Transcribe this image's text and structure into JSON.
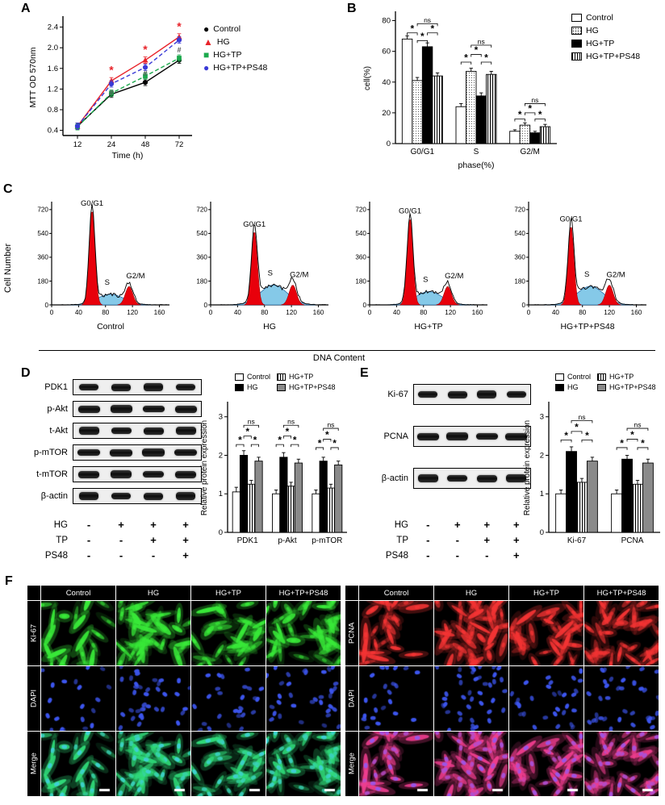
{
  "figure": {
    "panel_labels": {
      "A": "A",
      "B": "B",
      "C": "C",
      "D": "D",
      "E": "E",
      "F": "F"
    }
  },
  "colors": {
    "control": "#000000",
    "hg": "#e8232a",
    "hgtp": "#1ca94d",
    "hgtpps48": "#3a3ad6",
    "flow_peak": "#e8000b",
    "flow_s_fill": "#85c9e8",
    "flow_s_stroke": "#2d6fa8",
    "gray_bar": "#8a8a8a"
  },
  "chart_data": [
    {
      "id": "mtt",
      "type": "line",
      "xlabel": "Time (h)",
      "ylabel": "MTT OD 570nm",
      "x_ticks": [
        "12",
        "24",
        "48",
        "72"
      ],
      "y_ticks": [
        "0.4",
        "0.8",
        "1.2",
        "1.6",
        "2.0",
        "2.4"
      ],
      "ylim": [
        0.3,
        2.55
      ],
      "series": [
        {
          "name": "Control",
          "color": "#000000",
          "marker": "circle",
          "dashed": false,
          "values": [
            0.48,
            1.1,
            1.33,
            1.76
          ]
        },
        {
          "name": "HG",
          "color": "#e8232a",
          "marker": "triangle",
          "dashed": false,
          "values": [
            0.48,
            1.36,
            1.76,
            2.21
          ]
        },
        {
          "name": "HG+TP",
          "color": "#1ca94d",
          "marker": "square",
          "dashed": true,
          "values": [
            0.47,
            1.12,
            1.45,
            1.8
          ]
        },
        {
          "name": "HG+TP+PS48",
          "color": "#3a3ad6",
          "marker": "circle",
          "dashed": true,
          "values": [
            0.48,
            1.3,
            1.62,
            2.15
          ]
        }
      ],
      "annotations": [
        {
          "text": "*",
          "color": "#e8232a",
          "xi": 1,
          "y": 1.56
        },
        {
          "text": "*",
          "color": "#e8232a",
          "xi": 2,
          "y": 1.96
        },
        {
          "text": "*",
          "color": "#e8232a",
          "xi": 3,
          "y": 2.4
        },
        {
          "text": "#",
          "color": "#555555",
          "xi": 1,
          "y": 1.14
        },
        {
          "text": "#",
          "color": "#555555",
          "xi": 2,
          "y": 1.52
        },
        {
          "text": "#",
          "color": "#555555",
          "xi": 3,
          "y": 1.97
        }
      ]
    },
    {
      "id": "cycle",
      "type": "bar",
      "xlabel": "phase(%)",
      "ylabel": "cell(%)",
      "categories": [
        "G0/G1",
        "S",
        "G2/M"
      ],
      "ylim": [
        0,
        85
      ],
      "y_ticks": [
        "0",
        "20",
        "40",
        "60",
        "80"
      ],
      "series": [
        {
          "name": "Control",
          "fill": "white",
          "values": [
            68,
            24,
            8
          ],
          "errors": [
            2,
            2,
            1
          ]
        },
        {
          "name": "HG",
          "fill": "dots",
          "values": [
            41,
            47,
            12
          ],
          "errors": [
            2,
            2,
            1.5
          ]
        },
        {
          "name": "HG+TP",
          "fill": "black",
          "values": [
            63,
            31,
            7
          ],
          "errors": [
            2.5,
            2,
            1
          ]
        },
        {
          "name": "HG+TP+PS48",
          "fill": "vstripe",
          "values": [
            44,
            45,
            11
          ],
          "errors": [
            2,
            2,
            1.5
          ]
        }
      ],
      "sig": [
        {
          "cat": 0,
          "from": 0,
          "to": 1,
          "y": 72,
          "text": "*"
        },
        {
          "cat": 0,
          "from": 1,
          "to": 2,
          "y": 67,
          "text": "*"
        },
        {
          "cat": 0,
          "from": 2,
          "to": 3,
          "y": 72,
          "text": "*"
        },
        {
          "cat": 0,
          "from": 1,
          "to": 3,
          "y": 78,
          "text": "ns"
        },
        {
          "cat": 1,
          "from": 0,
          "to": 1,
          "y": 53,
          "text": "*"
        },
        {
          "cat": 1,
          "from": 1,
          "to": 2,
          "y": 58,
          "text": "*"
        },
        {
          "cat": 1,
          "from": 2,
          "to": 3,
          "y": 53,
          "text": "*"
        },
        {
          "cat": 1,
          "from": 1,
          "to": 3,
          "y": 64,
          "text": "ns"
        },
        {
          "cat": 2,
          "from": 0,
          "to": 1,
          "y": 16,
          "text": "*"
        },
        {
          "cat": 2,
          "from": 1,
          "to": 2,
          "y": 20,
          "text": "*"
        },
        {
          "cat": 2,
          "from": 2,
          "to": 3,
          "y": 16,
          "text": "*"
        },
        {
          "cat": 2,
          "from": 1,
          "to": 3,
          "y": 26,
          "text": "ns"
        }
      ]
    },
    {
      "id": "flow",
      "type": "histogram-set",
      "xlabel": "DNA Content",
      "ylabel": "Cell Number",
      "x_ticks": [
        "0",
        "40",
        "80",
        "120",
        "160"
      ],
      "y_ticks": [
        "0",
        "180",
        "360",
        "540",
        "720"
      ],
      "xlim": [
        0,
        175
      ],
      "ylim": [
        0,
        780
      ],
      "peak_labels": {
        "g1": "G0/G1",
        "s": "S",
        "g2": "G2/M"
      },
      "subplots": [
        {
          "title": "Control",
          "g1_x": 60,
          "g1_h": 720,
          "s_h": 80,
          "g2_x": 115,
          "g2_h": 140
        },
        {
          "title": "HG",
          "g1_x": 65,
          "g1_h": 560,
          "s_h": 150,
          "g2_x": 122,
          "g2_h": 150
        },
        {
          "title": "HG+TP",
          "g1_x": 60,
          "g1_h": 660,
          "s_h": 100,
          "g2_x": 116,
          "g2_h": 140
        },
        {
          "title": "HG+TP+PS48",
          "g1_x": 63,
          "g1_h": 600,
          "s_h": 140,
          "g2_x": 120,
          "g2_h": 150
        }
      ]
    },
    {
      "id": "prot_d",
      "type": "bar",
      "xlabel": "",
      "ylabel": "Relative protein expression",
      "categories": [
        "PDK1",
        "p-Akt",
        "p-mTOR"
      ],
      "ylim": [
        0,
        3.35
      ],
      "y_ticks": [
        "0",
        "1",
        "2",
        "3"
      ],
      "series": [
        {
          "name": "Control",
          "fill": "white",
          "values": [
            1.05,
            1.0,
            1.0
          ],
          "errors": [
            0.12,
            0.1,
            0.1
          ]
        },
        {
          "name": "HG",
          "fill": "black",
          "values": [
            2.0,
            1.95,
            1.85
          ],
          "errors": [
            0.12,
            0.12,
            0.1
          ]
        },
        {
          "name": "HG+TP",
          "fill": "vstripe",
          "values": [
            1.25,
            1.2,
            1.15
          ],
          "errors": [
            0.1,
            0.1,
            0.1
          ]
        },
        {
          "name": "HG+TP+PS48",
          "fill": "gray",
          "values": [
            1.85,
            1.8,
            1.75
          ],
          "errors": [
            0.1,
            0.1,
            0.1
          ]
        }
      ],
      "sig": [
        {
          "cat": 0,
          "from": 0,
          "to": 1,
          "y": 2.28,
          "text": "*"
        },
        {
          "cat": 0,
          "from": 1,
          "to": 2,
          "y": 2.5,
          "text": "*"
        },
        {
          "cat": 0,
          "from": 2,
          "to": 3,
          "y": 2.28,
          "text": "*"
        },
        {
          "cat": 0,
          "from": 1,
          "to": 3,
          "y": 2.78,
          "text": "ns"
        },
        {
          "cat": 1,
          "from": 0,
          "to": 1,
          "y": 2.28,
          "text": "*"
        },
        {
          "cat": 1,
          "from": 1,
          "to": 2,
          "y": 2.5,
          "text": "*"
        },
        {
          "cat": 1,
          "from": 2,
          "to": 3,
          "y": 2.28,
          "text": "*"
        },
        {
          "cat": 1,
          "from": 1,
          "to": 3,
          "y": 2.78,
          "text": "ns"
        },
        {
          "cat": 2,
          "from": 0,
          "to": 1,
          "y": 2.2,
          "text": "*"
        },
        {
          "cat": 2,
          "from": 1,
          "to": 2,
          "y": 2.42,
          "text": "*"
        },
        {
          "cat": 2,
          "from": 2,
          "to": 3,
          "y": 2.2,
          "text": "*"
        },
        {
          "cat": 2,
          "from": 1,
          "to": 3,
          "y": 2.7,
          "text": "ns"
        }
      ]
    },
    {
      "id": "prot_e",
      "type": "bar",
      "xlabel": "",
      "ylabel": "Relative protein expression",
      "categories": [
        "Ki-67",
        "PCNA"
      ],
      "ylim": [
        0,
        3.35
      ],
      "y_ticks": [
        "0",
        "1",
        "2",
        "3"
      ],
      "series": [
        {
          "name": "Control",
          "fill": "white",
          "values": [
            1.0,
            1.0
          ],
          "errors": [
            0.1,
            0.1
          ]
        },
        {
          "name": "HG",
          "fill": "black",
          "values": [
            2.1,
            1.9
          ],
          "errors": [
            0.12,
            0.1
          ]
        },
        {
          "name": "HG+TP",
          "fill": "vstripe",
          "values": [
            1.3,
            1.25
          ],
          "errors": [
            0.1,
            0.1
          ]
        },
        {
          "name": "HG+TP+PS48",
          "fill": "gray",
          "values": [
            1.85,
            1.8
          ],
          "errors": [
            0.1,
            0.1
          ]
        }
      ],
      "sig": [
        {
          "cat": 0,
          "from": 0,
          "to": 1,
          "y": 2.4,
          "text": "*"
        },
        {
          "cat": 0,
          "from": 1,
          "to": 2,
          "y": 2.62,
          "text": "*"
        },
        {
          "cat": 0,
          "from": 2,
          "to": 3,
          "y": 2.4,
          "text": "*"
        },
        {
          "cat": 0,
          "from": 1,
          "to": 3,
          "y": 2.9,
          "text": "ns"
        },
        {
          "cat": 1,
          "from": 0,
          "to": 1,
          "y": 2.2,
          "text": "*"
        },
        {
          "cat": 1,
          "from": 1,
          "to": 2,
          "y": 2.42,
          "text": "*"
        },
        {
          "cat": 1,
          "from": 2,
          "to": 3,
          "y": 2.2,
          "text": "*"
        },
        {
          "cat": 1,
          "from": 1,
          "to": 3,
          "y": 2.7,
          "text": "ns"
        }
      ]
    }
  ],
  "western_d": {
    "proteins": [
      "PDK1",
      "p-Akt",
      "t-Akt",
      "p-mTOR",
      "t-mTOR",
      "β-actin"
    ],
    "lanes": 4,
    "treatments": [
      {
        "label": "HG",
        "marks": [
          "-",
          "+",
          "+",
          "+"
        ]
      },
      {
        "label": "TP",
        "marks": [
          "-",
          "-",
          "+",
          "+"
        ]
      },
      {
        "label": "PS48",
        "marks": [
          "-",
          "-",
          "-",
          "+"
        ]
      }
    ]
  },
  "western_e": {
    "proteins": [
      "Ki-67",
      "PCNA",
      "β-actin"
    ],
    "lanes": 4,
    "treatments": [
      {
        "label": "HG",
        "marks": [
          "-",
          "+",
          "+",
          "+"
        ]
      },
      {
        "label": "TP",
        "marks": [
          "-",
          "-",
          "+",
          "+"
        ]
      },
      {
        "label": "PS48",
        "marks": [
          "-",
          "-",
          "-",
          "+"
        ]
      }
    ]
  },
  "panel_f": {
    "left": {
      "columns": [
        "Control",
        "HG",
        "HG+TP",
        "HG+TP+PS48"
      ],
      "rows": [
        "Ki-67",
        "DAPI",
        "Merge"
      ],
      "colors": {
        "stain": "#38e838",
        "dapi": "#3c55ee",
        "merge_spindle": "#2fd978",
        "merge_nuclei": "#3ecfd4"
      },
      "densities": [
        20,
        36,
        26,
        34
      ]
    },
    "right": {
      "columns": [
        "Control",
        "HG",
        "HG+TP",
        "HG+TP+PS48"
      ],
      "rows": [
        "PCNA",
        "DAPI",
        "Merge"
      ],
      "colors": {
        "stain": "#f23333",
        "dapi": "#3c55ee",
        "merge_spindle": "#ef3d8e",
        "merge_nuclei": "#9a55e8"
      },
      "densities": [
        22,
        40,
        30,
        36
      ]
    }
  }
}
